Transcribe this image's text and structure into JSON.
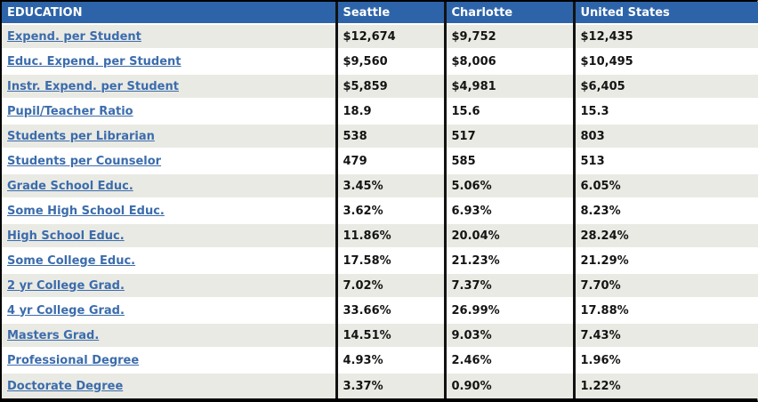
{
  "chart_data": {
    "type": "table",
    "title": "EDUCATION",
    "corner_header": "EDUCATION",
    "columns": [
      "Seattle",
      "Charlotte",
      "United States"
    ],
    "row_labels_are_links": true,
    "rows": [
      {
        "label": "Expend. per Student",
        "values": [
          "$12,674",
          "$9,752",
          "$12,435"
        ]
      },
      {
        "label": "Educ. Expend. per Student",
        "values": [
          "$9,560",
          "$8,006",
          "$10,495"
        ]
      },
      {
        "label": "Instr. Expend. per Student",
        "values": [
          "$5,859",
          "$4,981",
          "$6,405"
        ]
      },
      {
        "label": "Pupil/Teacher Ratio",
        "values": [
          "18.9",
          "15.6",
          "15.3"
        ]
      },
      {
        "label": "Students per Librarian",
        "values": [
          "538",
          "517",
          "803"
        ]
      },
      {
        "label": "Students per Counselor",
        "values": [
          "479",
          "585",
          "513"
        ]
      },
      {
        "label": "Grade School Educ.",
        "values": [
          "3.45%",
          "5.06%",
          "6.05%"
        ]
      },
      {
        "label": "Some High School Educ.",
        "values": [
          "3.62%",
          "6.93%",
          "8.23%"
        ]
      },
      {
        "label": "High School Educ.",
        "values": [
          "11.86%",
          "20.04%",
          "28.24%"
        ]
      },
      {
        "label": "Some College Educ.",
        "values": [
          "17.58%",
          "21.23%",
          "21.29%"
        ]
      },
      {
        "label": "2 yr College Grad.",
        "values": [
          "7.02%",
          "7.37%",
          "7.70%"
        ]
      },
      {
        "label": "4 yr College Grad.",
        "values": [
          "33.66%",
          "26.99%",
          "17.88%"
        ]
      },
      {
        "label": "Masters Grad.",
        "values": [
          "14.51%",
          "9.03%",
          "7.43%"
        ]
      },
      {
        "label": "Professional Degree",
        "values": [
          "4.93%",
          "2.46%",
          "1.96%"
        ]
      },
      {
        "label": "Doctorate Degree",
        "values": [
          "3.37%",
          "0.90%",
          "1.22%"
        ]
      }
    ]
  },
  "colors": {
    "header_bg": "#2D64A9",
    "header_text": "#FFFFFF",
    "link_blue": "#3B6CAC",
    "row_alt_bg": "#EAEAE4",
    "row_bg": "#FFFFFF",
    "grid_black": "#121212",
    "value_text": "#141414"
  }
}
